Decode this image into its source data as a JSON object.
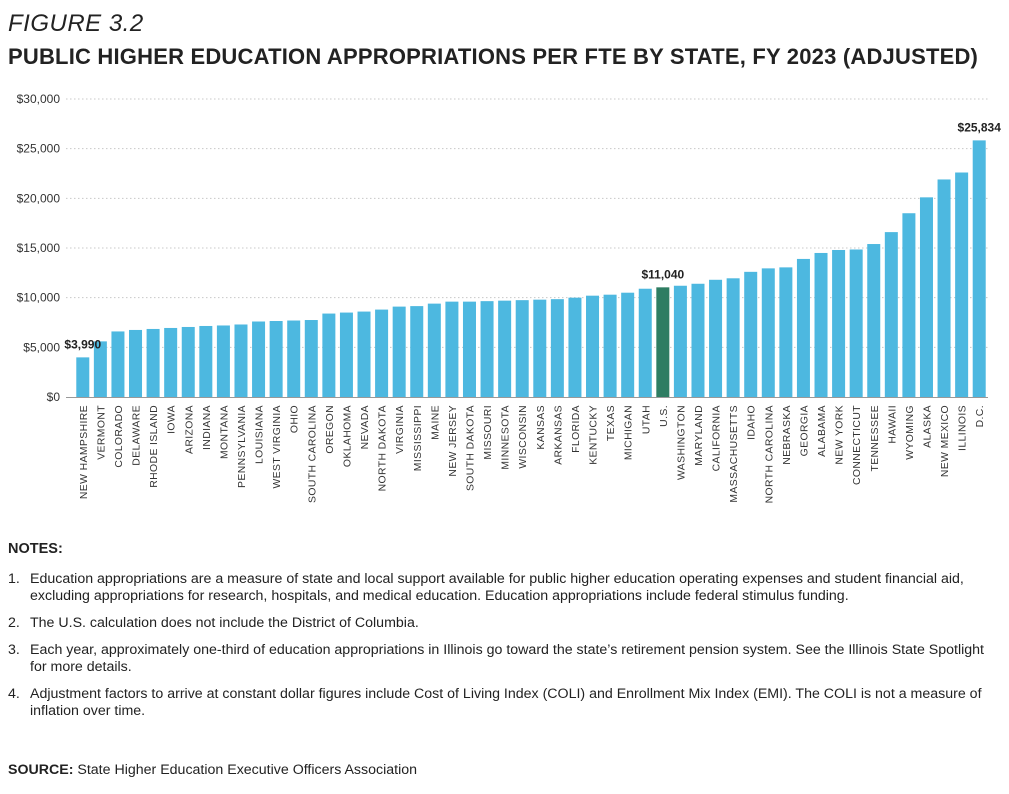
{
  "figure_label": "FIGURE 3.2",
  "title": "PUBLIC HIGHER EDUCATION APPROPRIATIONS PER FTE BY STATE, FY 2023 (ADJUSTED)",
  "chart_data": {
    "type": "bar",
    "title": "PUBLIC HIGHER EDUCATION APPROPRIATIONS PER FTE BY STATE, FY 2023 (ADJUSTED)",
    "xlabel": "",
    "ylabel": "",
    "ylim": [
      0,
      30000
    ],
    "yticks": [
      0,
      5000,
      10000,
      15000,
      20000,
      25000,
      30000
    ],
    "ytick_labels": [
      "$0",
      "$5,000",
      "$10,000",
      "$15,000",
      "$20,000",
      "$25,000",
      "$30,000"
    ],
    "grid": "horizontal dotted",
    "colors": {
      "bar": "#4db8e0",
      "highlight": "#2e7d62",
      "grid": "#c8c8c8",
      "axis": "#999999"
    },
    "highlight_category": "U.S.",
    "categories": [
      "NEW HAMPSHIRE",
      "VERMONT",
      "COLORADO",
      "DELAWARE",
      "RHODE ISLAND",
      "IOWA",
      "ARIZONA",
      "INDIANA",
      "MONTANA",
      "PENNSYLVANIA",
      "LOUISIANA",
      "WEST VIRGINIA",
      "OHIO",
      "SOUTH CAROLINA",
      "OREGON",
      "OKLAHOMA",
      "NEVADA",
      "NORTH DAKOTA",
      "VIRGINIA",
      "MISSISSIPPI",
      "MAINE",
      "NEW JERSEY",
      "SOUTH DAKOTA",
      "MISSOURI",
      "MINNESOTA",
      "WISCONSIN",
      "KANSAS",
      "ARKANSAS",
      "FLORIDA",
      "KENTUCKY",
      "TEXAS",
      "MICHIGAN",
      "UTAH",
      "U.S.",
      "WASHINGTON",
      "MARYLAND",
      "CALIFORNIA",
      "MASSACHUSETTS",
      "IDAHO",
      "NORTH CAROLINA",
      "NEBRASKA",
      "GEORGIA",
      "ALABAMA",
      "NEW YORK",
      "CONNECTICUT",
      "TENNESSEE",
      "HAWAII",
      "WYOMING",
      "ALASKA",
      "NEW MEXICO",
      "ILLINOIS",
      "D.C."
    ],
    "values": [
      3990,
      5600,
      6600,
      6750,
      6850,
      6950,
      7050,
      7150,
      7200,
      7300,
      7600,
      7650,
      7700,
      7750,
      8400,
      8500,
      8600,
      8800,
      9100,
      9150,
      9400,
      9600,
      9600,
      9650,
      9700,
      9750,
      9800,
      9850,
      10000,
      10200,
      10300,
      10500,
      10900,
      11040,
      11200,
      11400,
      11800,
      11950,
      12600,
      12950,
      13050,
      13900,
      14500,
      14800,
      14850,
      15400,
      16600,
      18500,
      20100,
      21900,
      22600,
      25834
    ],
    "data_labels": [
      {
        "category": "NEW HAMPSHIRE",
        "text": "$3,990"
      },
      {
        "category": "U.S.",
        "text": "$11,040"
      },
      {
        "category": "D.C.",
        "text": "$25,834"
      }
    ]
  },
  "notes": {
    "heading": "NOTES:",
    "items": [
      {
        "num": "1.",
        "text": "Education appropriations are a measure of state and local support available for public higher education operating expenses and student financial aid, excluding appropriations for research, hospitals, and medical education. Education appropriations include federal stimulus funding."
      },
      {
        "num": "2.",
        "text": "The U.S. calculation does not include the District of Columbia."
      },
      {
        "num": "3.",
        "text": "Each year, approximately one-third of education appropriations in Illinois go toward the state’s retirement pension system. See the Illinois State Spotlight for more details."
      },
      {
        "num": "4.",
        "text": "Adjustment factors to arrive at constant dollar figures include Cost of Living Index (COLI) and Enrollment Mix Index (EMI). The COLI is not a measure of inflation over time."
      }
    ]
  },
  "source": {
    "label": "SOURCE:",
    "text": "State Higher Education Executive Officers Association"
  }
}
